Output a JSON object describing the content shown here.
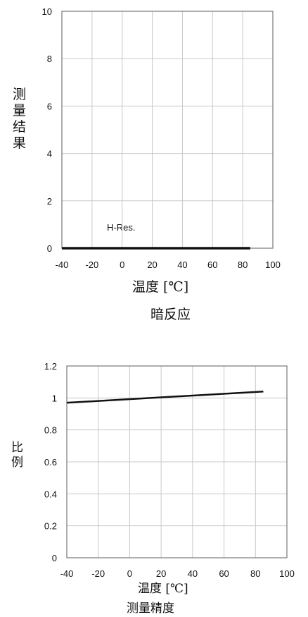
{
  "chart_data": [
    {
      "type": "line",
      "title": "暗反应",
      "xlabel": "温度 [℃]",
      "ylabel": "测量结果",
      "xlim": [
        -40,
        100
      ],
      "ylim": [
        0,
        10
      ],
      "grid": true,
      "x_ticks": [
        "-40",
        "-20",
        "0",
        "20",
        "40",
        "60",
        "80",
        "100"
      ],
      "y_ticks": [
        "0",
        "2",
        "4",
        "6",
        "8",
        "10"
      ],
      "series": [
        {
          "name": "H-Res.",
          "x": [
            -40,
            85
          ],
          "y": [
            0,
            0
          ]
        }
      ]
    },
    {
      "type": "line",
      "title": "测量精度",
      "xlabel": "温度 [℃]",
      "ylabel": "比例",
      "xlim": [
        -40,
        100
      ],
      "ylim": [
        0,
        1.2
      ],
      "grid": true,
      "x_ticks": [
        "-40",
        "-20",
        "0",
        "20",
        "40",
        "60",
        "80",
        "100"
      ],
      "y_ticks": [
        "0",
        "0.2",
        "0.4",
        "0.6",
        "0.8",
        "1",
        "1.2"
      ],
      "series": [
        {
          "x": [
            -40,
            85
          ],
          "y": [
            0.97,
            1.04
          ]
        }
      ]
    }
  ]
}
